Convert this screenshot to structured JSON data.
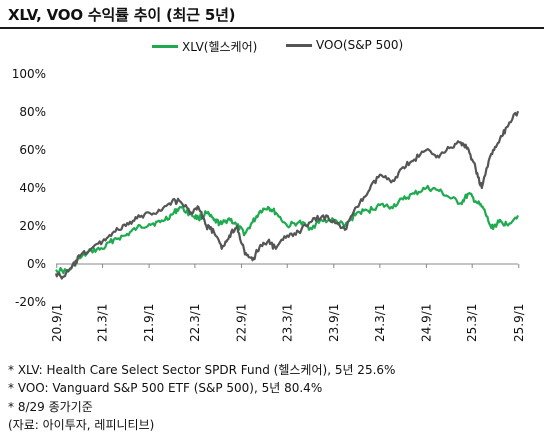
{
  "title": "XLV, VOO 수익률 추이 (최근 5년)",
  "colors": {
    "xlv": "#1faa4f",
    "voo": "#555555",
    "zero_line": "#888888"
  },
  "notes": [
    "* XLV: Health Care Select Sector SPDR Fund (헬스케어), 5년 25.6%",
    "* VOO: Vanguard S&P 500 ETF (S&P 500), 5년 80.4%",
    "* 8/29 종가기준",
    "(자료: 아이투자, 레피니티브)"
  ],
  "chart_data": {
    "type": "line",
    "title": "XLV, VOO 수익률 추이 (최근 5년)",
    "xlabel": "",
    "ylabel": "",
    "y_unit": "%",
    "ylim": [
      -20,
      100
    ],
    "yticks": [
      -20,
      0,
      20,
      40,
      60,
      80,
      100
    ],
    "ytick_labels": [
      "-20%",
      "0%",
      "20%",
      "40%",
      "60%",
      "80%",
      "100%"
    ],
    "xlim": [
      "2020-08-29",
      "2025-08-29"
    ],
    "xticks": [
      "2020-09-01",
      "2021-03-01",
      "2021-09-01",
      "2022-03-01",
      "2022-09-01",
      "2023-03-01",
      "2023-09-01",
      "2024-03-01",
      "2024-09-01",
      "2025-03-01",
      "2025-09-01"
    ],
    "xtick_labels": [
      "20.9/1",
      "21.3/1",
      "21.9/1",
      "22.3/1",
      "22.9/1",
      "23.3/1",
      "23.9/1",
      "24.3/1",
      "24.9/1",
      "25.3/1",
      "25.9/1"
    ],
    "grid": false,
    "legend_position": "top",
    "series": [
      {
        "name": "XLV(헬스케어)",
        "color": "#1faa4f",
        "x": [
          "2020-08-29",
          "2020-10-15",
          "2020-12-01",
          "2021-01-15",
          "2021-03-01",
          "2021-04-15",
          "2021-06-01",
          "2021-07-15",
          "2021-09-01",
          "2021-10-15",
          "2021-12-01",
          "2022-01-01",
          "2022-02-15",
          "2022-03-15",
          "2022-04-15",
          "2022-05-15",
          "2022-06-15",
          "2022-07-15",
          "2022-08-15",
          "2022-09-15",
          "2022-10-15",
          "2022-11-15",
          "2022-12-15",
          "2023-01-15",
          "2023-03-01",
          "2023-04-15",
          "2023-06-01",
          "2023-07-15",
          "2023-09-01",
          "2023-10-15",
          "2023-12-01",
          "2024-01-15",
          "2024-03-01",
          "2024-04-15",
          "2024-06-01",
          "2024-07-15",
          "2024-09-01",
          "2024-10-15",
          "2024-12-01",
          "2025-01-15",
          "2025-02-15",
          "2025-03-15",
          "2025-04-15",
          "2025-05-15",
          "2025-06-15",
          "2025-07-15",
          "2025-08-29"
        ],
        "y": [
          -3,
          -4,
          3,
          7,
          8,
          13,
          15,
          19,
          21,
          22,
          26,
          30,
          26,
          24,
          27,
          23,
          21,
          24,
          20,
          16,
          22,
          28,
          30,
          27,
          20,
          22,
          19,
          23,
          23,
          20,
          27,
          28,
          31,
          30,
          34,
          37,
          40,
          39,
          35,
          32,
          37,
          33,
          29,
          19,
          22,
          21,
          25.6
        ]
      },
      {
        "name": "VOO(S&P 500)",
        "color": "#555555",
        "x": [
          "2020-08-29",
          "2020-09-24",
          "2020-10-30",
          "2020-12-01",
          "2021-01-15",
          "2021-03-01",
          "2021-04-15",
          "2021-06-01",
          "2021-07-15",
          "2021-09-01",
          "2021-10-15",
          "2021-12-01",
          "2022-01-01",
          "2022-02-15",
          "2022-03-15",
          "2022-04-15",
          "2022-05-15",
          "2022-06-15",
          "2022-07-15",
          "2022-08-15",
          "2022-09-15",
          "2022-10-15",
          "2022-11-15",
          "2022-12-15",
          "2023-01-15",
          "2023-03-01",
          "2023-04-15",
          "2023-06-01",
          "2023-07-15",
          "2023-09-01",
          "2023-10-15",
          "2023-12-01",
          "2024-01-15",
          "2024-03-01",
          "2024-04-15",
          "2024-06-01",
          "2024-07-15",
          "2024-09-01",
          "2024-10-15",
          "2024-12-01",
          "2025-01-15",
          "2025-02-15",
          "2025-03-15",
          "2025-04-08",
          "2025-05-15",
          "2025-06-15",
          "2025-07-15",
          "2025-08-29"
        ],
        "y": [
          -5,
          -7,
          -2,
          4,
          8,
          12,
          17,
          20,
          24,
          27,
          28,
          33,
          33,
          27,
          30,
          20,
          17,
          8,
          15,
          20,
          5,
          2,
          10,
          12,
          8,
          15,
          17,
          22,
          25,
          23,
          18,
          30,
          38,
          47,
          43,
          51,
          55,
          60,
          57,
          61,
          64,
          60,
          50,
          40,
          58,
          64,
          72,
          80.4
        ]
      }
    ]
  }
}
